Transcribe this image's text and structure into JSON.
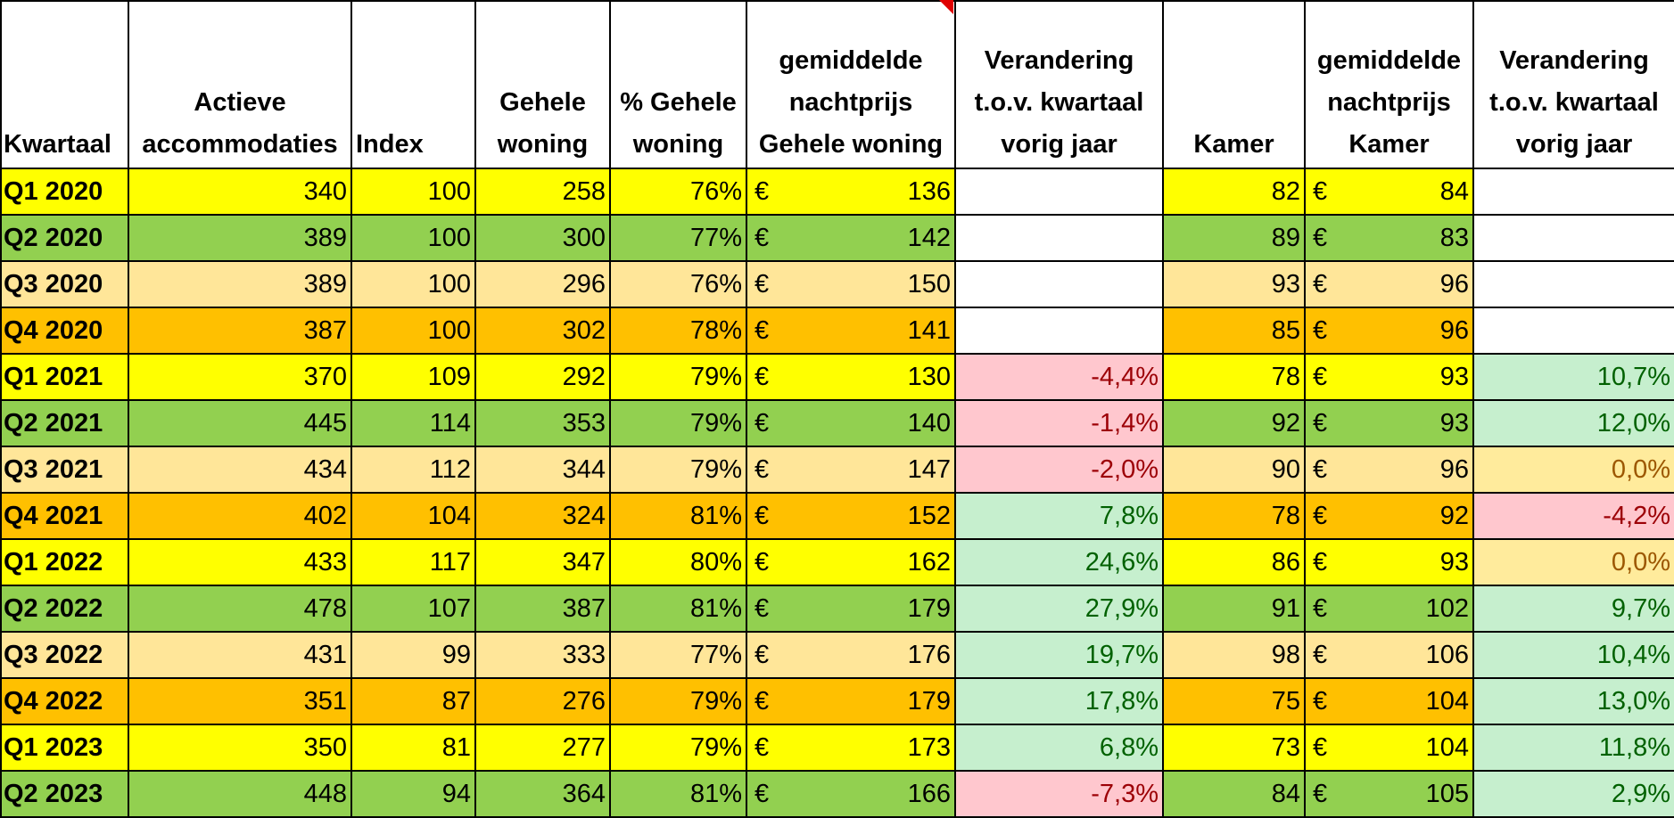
{
  "headers": {
    "kwartaal": "Kwartaal",
    "actieve": "Actieve accommodaties",
    "index": "Index",
    "gehele_woning": "Gehele woning",
    "pct_gehele_woning": "% Gehele woning",
    "nachtprijs_woning": "gemiddelde nachtprijs Gehele woning",
    "verandering_woning": "Verandering t.o.v. kwartaal vorig jaar",
    "kamer": "Kamer",
    "nachtprijs_kamer": "gemiddelde nachtprijs Kamer",
    "verandering_kamer": "Verandering t.o.v. kwartaal vorig jaar"
  },
  "currency_symbol": "€",
  "colors": {
    "yellow": "#ffff00",
    "green": "#92d050",
    "peach": "#ffe699",
    "orange": "#ffc000",
    "negative_fill": "#ffc7ce",
    "negative_text": "#9c0006",
    "positive_fill": "#c6efce",
    "positive_text": "#006100",
    "neutral_fill": "#ffeb9c",
    "neutral_text": "#9c5700"
  },
  "rows": [
    {
      "kwartaal": "Q1 2020",
      "actieve": "340",
      "index": "100",
      "gehele": "258",
      "pct": "76%",
      "prijs_woning": "136",
      "ver_woning": "",
      "kamer": "82",
      "prijs_kamer": "84",
      "ver_kamer": ""
    },
    {
      "kwartaal": "Q2 2020",
      "actieve": "389",
      "index": "100",
      "gehele": "300",
      "pct": "77%",
      "prijs_woning": "142",
      "ver_woning": "",
      "kamer": "89",
      "prijs_kamer": "83",
      "ver_kamer": ""
    },
    {
      "kwartaal": "Q3 2020",
      "actieve": "389",
      "index": "100",
      "gehele": "296",
      "pct": "76%",
      "prijs_woning": "150",
      "ver_woning": "",
      "kamer": "93",
      "prijs_kamer": "96",
      "ver_kamer": ""
    },
    {
      "kwartaal": "Q4 2020",
      "actieve": "387",
      "index": "100",
      "gehele": "302",
      "pct": "78%",
      "prijs_woning": "141",
      "ver_woning": "",
      "kamer": "85",
      "prijs_kamer": "96",
      "ver_kamer": ""
    },
    {
      "kwartaal": "Q1 2021",
      "actieve": "370",
      "index": "109",
      "gehele": "292",
      "pct": "79%",
      "prijs_woning": "130",
      "ver_woning": "-4,4%",
      "kamer": "78",
      "prijs_kamer": "93",
      "ver_kamer": "10,7%"
    },
    {
      "kwartaal": "Q2 2021",
      "actieve": "445",
      "index": "114",
      "gehele": "353",
      "pct": "79%",
      "prijs_woning": "140",
      "ver_woning": "-1,4%",
      "kamer": "92",
      "prijs_kamer": "93",
      "ver_kamer": "12,0%"
    },
    {
      "kwartaal": "Q3 2021",
      "actieve": "434",
      "index": "112",
      "gehele": "344",
      "pct": "79%",
      "prijs_woning": "147",
      "ver_woning": "-2,0%",
      "kamer": "90",
      "prijs_kamer": "96",
      "ver_kamer": "0,0%"
    },
    {
      "kwartaal": "Q4 2021",
      "actieve": "402",
      "index": "104",
      "gehele": "324",
      "pct": "81%",
      "prijs_woning": "152",
      "ver_woning": "7,8%",
      "kamer": "78",
      "prijs_kamer": "92",
      "ver_kamer": "-4,2%"
    },
    {
      "kwartaal": "Q1 2022",
      "actieve": "433",
      "index": "117",
      "gehele": "347",
      "pct": "80%",
      "prijs_woning": "162",
      "ver_woning": "24,6%",
      "kamer": "86",
      "prijs_kamer": "93",
      "ver_kamer": "0,0%"
    },
    {
      "kwartaal": "Q2 2022",
      "actieve": "478",
      "index": "107",
      "gehele": "387",
      "pct": "81%",
      "prijs_woning": "179",
      "ver_woning": "27,9%",
      "kamer": "91",
      "prijs_kamer": "102",
      "ver_kamer": "9,7%"
    },
    {
      "kwartaal": "Q3 2022",
      "actieve": "431",
      "index": "99",
      "gehele": "333",
      "pct": "77%",
      "prijs_woning": "176",
      "ver_woning": "19,7%",
      "kamer": "98",
      "prijs_kamer": "106",
      "ver_kamer": "10,4%"
    },
    {
      "kwartaal": "Q4 2022",
      "actieve": "351",
      "index": "87",
      "gehele": "276",
      "pct": "79%",
      "prijs_woning": "179",
      "ver_woning": "17,8%",
      "kamer": "75",
      "prijs_kamer": "104",
      "ver_kamer": "13,0%"
    },
    {
      "kwartaal": "Q1 2023",
      "actieve": "350",
      "index": "81",
      "gehele": "277",
      "pct": "79%",
      "prijs_woning": "173",
      "ver_woning": "6,8%",
      "kamer": "73",
      "prijs_kamer": "104",
      "ver_kamer": "11,8%"
    },
    {
      "kwartaal": "Q2 2023",
      "actieve": "448",
      "index": "94",
      "gehele": "364",
      "pct": "81%",
      "prijs_woning": "166",
      "ver_woning": "-7,3%",
      "kamer": "84",
      "prijs_kamer": "105",
      "ver_kamer": "2,9%"
    }
  ]
}
